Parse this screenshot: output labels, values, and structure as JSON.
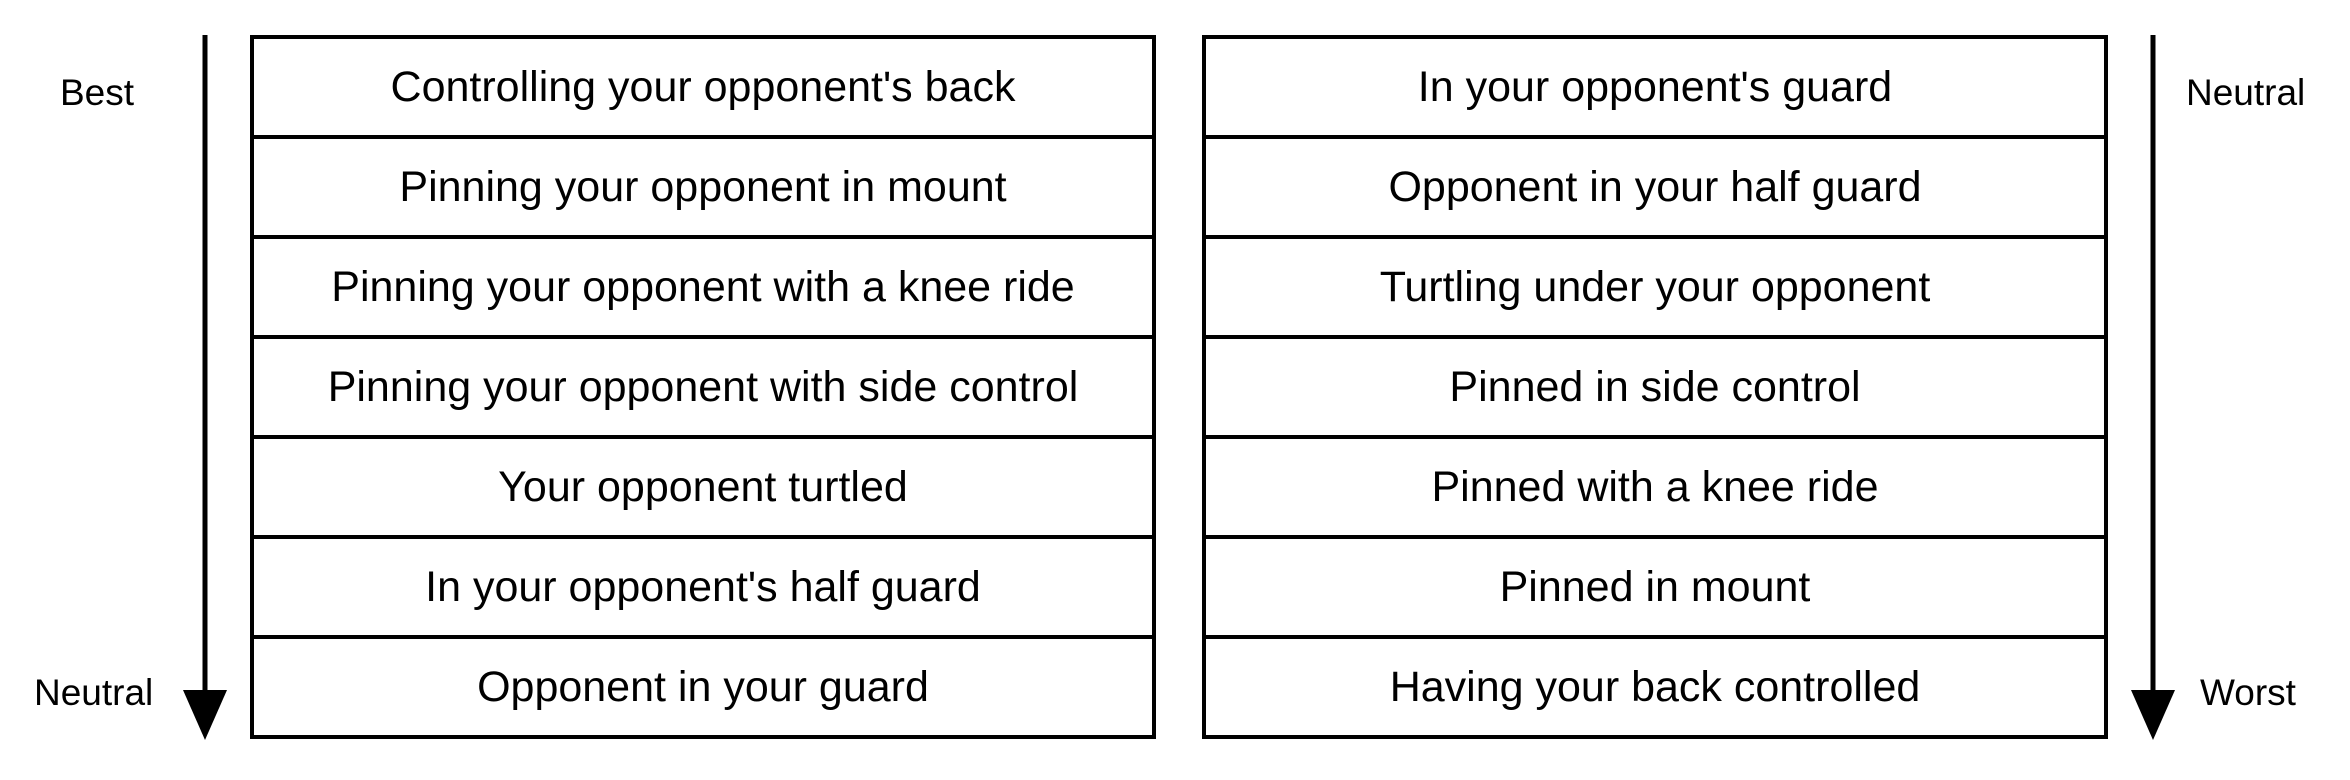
{
  "left_column": {
    "top_label": "Best",
    "bottom_label": "Neutral",
    "items": [
      "Controlling your opponent's back",
      "Pinning your opponent in mount",
      "Pinning your opponent with a knee ride",
      "Pinning your opponent with side control",
      "Your opponent turtled",
      "In your opponent's half guard",
      "Opponent in your guard"
    ]
  },
  "right_column": {
    "top_label": "Neutral",
    "bottom_label": "Worst",
    "items": [
      "In your opponent's guard",
      "Opponent in your half guard",
      "Turtling under your opponent",
      "Pinned in side control",
      "Pinned with a knee ride",
      "Pinned in mount",
      "Having your back controlled"
    ]
  }
}
